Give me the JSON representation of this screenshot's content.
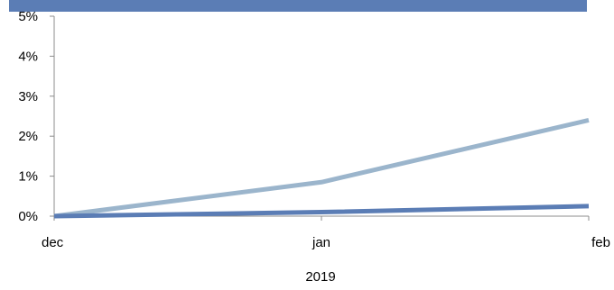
{
  "chart_data": {
    "type": "line",
    "categories": [
      "dec",
      "jan",
      "feb"
    ],
    "xlabel": "2019",
    "ylabel": "",
    "y_ticks": [
      "0%",
      "1%",
      "2%",
      "3%",
      "4%",
      "5%"
    ],
    "ylim": [
      0,
      5
    ],
    "grid": false,
    "series": [
      {
        "values": [
          0.0,
          0.85,
          2.4
        ],
        "color": "#9BB5CC"
      },
      {
        "values": [
          0.0,
          0.1,
          0.25
        ],
        "color": "#5B7DB5"
      }
    ]
  },
  "colors": {
    "axis": "#8c8c8c",
    "top_band": "#5B7DB5"
  }
}
